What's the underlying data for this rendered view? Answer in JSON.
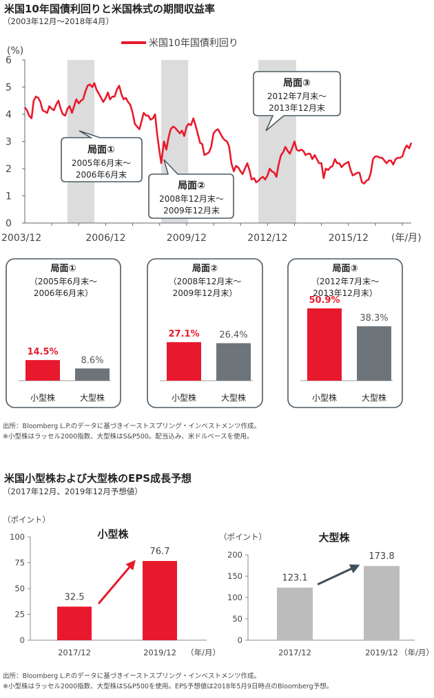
{
  "section1": {
    "title": "米国10年国債利回りと米国株式の期間収益率",
    "subtitle": "（2003年12月～2018年4月）",
    "unit": "(%)",
    "x_unit": "(年/月)",
    "legend": "米国10年国債利回り",
    "phases": [
      {
        "label": "局面①",
        "period": [
          "2005年6月末～",
          "2006年6月末"
        ],
        "start": 2005.5,
        "end": 2006.5
      },
      {
        "label": "局面②",
        "period": [
          "2008年12月末～",
          "2009年12月末"
        ],
        "start": 2008.98,
        "end": 2009.98
      },
      {
        "label": "局面③",
        "period": [
          "2012年7月末～",
          "2013年12月末"
        ],
        "start": 2012.58,
        "end": 2013.98
      }
    ]
  },
  "chart_data": [
    {
      "type": "line",
      "series": [
        {
          "name": "米国10年国債利回り",
          "color": "#e8192c",
          "points": [
            [
              2003.92,
              4.25
            ],
            [
              2004.0,
              4.15
            ],
            [
              2004.08,
              3.95
            ],
            [
              2004.17,
              3.85
            ],
            [
              2004.25,
              4.5
            ],
            [
              2004.33,
              4.65
            ],
            [
              2004.42,
              4.6
            ],
            [
              2004.5,
              4.45
            ],
            [
              2004.58,
              4.15
            ],
            [
              2004.67,
              4.1
            ],
            [
              2004.75,
              4.05
            ],
            [
              2004.83,
              4.3
            ],
            [
              2004.92,
              4.2
            ],
            [
              2005.0,
              4.15
            ],
            [
              2005.08,
              4.35
            ],
            [
              2005.17,
              4.5
            ],
            [
              2005.25,
              4.2
            ],
            [
              2005.33,
              4.0
            ],
            [
              2005.42,
              3.95
            ],
            [
              2005.5,
              4.2
            ],
            [
              2005.58,
              4.3
            ],
            [
              2005.67,
              4.05
            ],
            [
              2005.75,
              4.3
            ],
            [
              2005.83,
              4.55
            ],
            [
              2005.92,
              4.4
            ],
            [
              2006.0,
              4.5
            ],
            [
              2006.08,
              4.55
            ],
            [
              2006.17,
              4.85
            ],
            [
              2006.25,
              5.05
            ],
            [
              2006.33,
              5.1
            ],
            [
              2006.42,
              5.0
            ],
            [
              2006.5,
              5.15
            ],
            [
              2006.58,
              4.9
            ],
            [
              2006.67,
              4.75
            ],
            [
              2006.75,
              4.6
            ],
            [
              2006.83,
              4.45
            ],
            [
              2006.92,
              4.6
            ],
            [
              2007.0,
              4.8
            ],
            [
              2007.08,
              4.55
            ],
            [
              2007.17,
              4.65
            ],
            [
              2007.25,
              4.65
            ],
            [
              2007.33,
              4.9
            ],
            [
              2007.42,
              5.05
            ],
            [
              2007.5,
              4.75
            ],
            [
              2007.58,
              4.55
            ],
            [
              2007.67,
              4.6
            ],
            [
              2007.75,
              4.45
            ],
            [
              2007.83,
              4.35
            ],
            [
              2007.92,
              4.05
            ],
            [
              2008.0,
              3.65
            ],
            [
              2008.08,
              3.55
            ],
            [
              2008.17,
              3.45
            ],
            [
              2008.25,
              3.75
            ],
            [
              2008.33,
              4.05
            ],
            [
              2008.42,
              3.95
            ],
            [
              2008.5,
              3.95
            ],
            [
              2008.58,
              3.8
            ],
            [
              2008.67,
              3.85
            ],
            [
              2008.75,
              4.0
            ],
            [
              2008.83,
              3.25
            ],
            [
              2008.92,
              2.6
            ],
            [
              2008.98,
              2.2
            ],
            [
              2009.08,
              3.0
            ],
            [
              2009.17,
              2.7
            ],
            [
              2009.25,
              3.15
            ],
            [
              2009.33,
              3.45
            ],
            [
              2009.42,
              3.55
            ],
            [
              2009.5,
              3.5
            ],
            [
              2009.58,
              3.4
            ],
            [
              2009.67,
              3.3
            ],
            [
              2009.75,
              3.4
            ],
            [
              2009.83,
              3.2
            ],
            [
              2009.92,
              3.55
            ],
            [
              2010.0,
              3.65
            ],
            [
              2010.08,
              3.6
            ],
            [
              2010.17,
              3.85
            ],
            [
              2010.25,
              3.6
            ],
            [
              2010.33,
              3.3
            ],
            [
              2010.42,
              2.95
            ],
            [
              2010.5,
              2.9
            ],
            [
              2010.58,
              2.5
            ],
            [
              2010.67,
              2.55
            ],
            [
              2010.75,
              2.6
            ],
            [
              2010.83,
              2.8
            ],
            [
              2010.92,
              3.3
            ],
            [
              2011.0,
              3.4
            ],
            [
              2011.08,
              3.45
            ],
            [
              2011.17,
              3.3
            ],
            [
              2011.25,
              3.15
            ],
            [
              2011.33,
              3.05
            ],
            [
              2011.42,
              3.0
            ],
            [
              2011.5,
              2.8
            ],
            [
              2011.58,
              2.2
            ],
            [
              2011.67,
              1.9
            ],
            [
              2011.75,
              2.1
            ],
            [
              2011.83,
              2.05
            ],
            [
              2011.92,
              1.9
            ],
            [
              2012.0,
              1.8
            ],
            [
              2012.08,
              2.0
            ],
            [
              2012.17,
              2.2
            ],
            [
              2012.25,
              1.95
            ],
            [
              2012.33,
              1.6
            ],
            [
              2012.42,
              1.65
            ],
            [
              2012.5,
              1.5
            ],
            [
              2012.58,
              1.55
            ],
            [
              2012.67,
              1.65
            ],
            [
              2012.75,
              1.7
            ],
            [
              2012.83,
              1.6
            ],
            [
              2012.92,
              1.75
            ],
            [
              2013.0,
              2.0
            ],
            [
              2013.08,
              1.9
            ],
            [
              2013.17,
              1.85
            ],
            [
              2013.25,
              1.7
            ],
            [
              2013.33,
              2.15
            ],
            [
              2013.42,
              2.5
            ],
            [
              2013.5,
              2.6
            ],
            [
              2013.58,
              2.8
            ],
            [
              2013.67,
              2.65
            ],
            [
              2013.75,
              2.55
            ],
            [
              2013.83,
              2.75
            ],
            [
              2013.92,
              3.0
            ],
            [
              2014.0,
              2.7
            ],
            [
              2014.08,
              2.65
            ],
            [
              2014.17,
              2.7
            ],
            [
              2014.25,
              2.65
            ],
            [
              2014.33,
              2.5
            ],
            [
              2014.42,
              2.55
            ],
            [
              2014.5,
              2.55
            ],
            [
              2014.58,
              2.35
            ],
            [
              2014.67,
              2.5
            ],
            [
              2014.75,
              2.35
            ],
            [
              2014.83,
              2.2
            ],
            [
              2014.92,
              2.2
            ],
            [
              2015.0,
              1.65
            ],
            [
              2015.08,
              2.0
            ],
            [
              2015.17,
              1.95
            ],
            [
              2015.25,
              2.05
            ],
            [
              2015.33,
              2.1
            ],
            [
              2015.42,
              2.35
            ],
            [
              2015.5,
              2.2
            ],
            [
              2015.58,
              2.2
            ],
            [
              2015.67,
              2.05
            ],
            [
              2015.75,
              2.15
            ],
            [
              2015.83,
              2.2
            ],
            [
              2015.92,
              2.25
            ],
            [
              2016.0,
              1.95
            ],
            [
              2016.08,
              1.75
            ],
            [
              2016.17,
              1.8
            ],
            [
              2016.25,
              1.85
            ],
            [
              2016.33,
              1.85
            ],
            [
              2016.42,
              1.5
            ],
            [
              2016.5,
              1.45
            ],
            [
              2016.58,
              1.55
            ],
            [
              2016.67,
              1.6
            ],
            [
              2016.75,
              1.85
            ],
            [
              2016.83,
              2.35
            ],
            [
              2016.92,
              2.45
            ],
            [
              2017.0,
              2.45
            ],
            [
              2017.08,
              2.4
            ],
            [
              2017.17,
              2.4
            ],
            [
              2017.25,
              2.3
            ],
            [
              2017.33,
              2.2
            ],
            [
              2017.42,
              2.3
            ],
            [
              2017.5,
              2.3
            ],
            [
              2017.58,
              2.15
            ],
            [
              2017.67,
              2.35
            ],
            [
              2017.75,
              2.4
            ],
            [
              2017.83,
              2.4
            ],
            [
              2017.92,
              2.45
            ],
            [
              2018.0,
              2.7
            ],
            [
              2018.08,
              2.85
            ],
            [
              2018.17,
              2.75
            ],
            [
              2018.25,
              2.95
            ]
          ]
        }
      ],
      "xlim": [
        2003.92,
        2018.25
      ],
      "ylim": [
        0,
        6
      ],
      "y_ticks": [
        "0",
        "1",
        "2",
        "3",
        "4",
        "5",
        "6"
      ],
      "x_ticks": [
        {
          "x": 2003.92,
          "label": "2003/12"
        },
        {
          "x": 2006.92,
          "label": "2006/12"
        },
        {
          "x": 2009.92,
          "label": "2009/12"
        },
        {
          "x": 2012.92,
          "label": "2012/12"
        },
        {
          "x": 2015.92,
          "label": "2015/12"
        }
      ],
      "shaded_periods": [
        [
          2005.5,
          2006.5
        ],
        [
          2008.98,
          2009.98
        ],
        [
          2012.58,
          2013.98
        ]
      ]
    },
    {
      "type": "bar",
      "title": "局面①",
      "period": [
        "（2005年6月末～",
        "2006年6月末）"
      ],
      "categories": [
        "小型株",
        "大型株"
      ],
      "values": [
        14.5,
        8.6
      ],
      "value_labels": [
        "14.5%",
        "8.6%"
      ],
      "colors": [
        "#e8192c",
        "#6d757b"
      ],
      "label_colors": [
        "#e8192c",
        "#555555"
      ]
    },
    {
      "type": "bar",
      "title": "局面②",
      "period": [
        "（2008年12月末～",
        "2009年12月末）"
      ],
      "categories": [
        "小型株",
        "大型株"
      ],
      "values": [
        27.1,
        26.4
      ],
      "value_labels": [
        "27.1%",
        "26.4%"
      ],
      "colors": [
        "#e8192c",
        "#6d757b"
      ],
      "label_colors": [
        "#e8192c",
        "#555555"
      ]
    },
    {
      "type": "bar",
      "title": "局面③",
      "period": [
        "（2012年7月末～",
        "2013年12月末）"
      ],
      "categories": [
        "小型株",
        "大型株"
      ],
      "values": [
        50.9,
        38.3
      ],
      "value_labels": [
        "50.9%",
        "38.3%"
      ],
      "colors": [
        "#e8192c",
        "#6d757b"
      ],
      "label_colors": [
        "#e8192c",
        "#555555"
      ]
    },
    {
      "type": "bar",
      "title": "小型株",
      "unit": "（ポイント）",
      "x_unit": "（年/月）",
      "categories": [
        "2017/12",
        "2019/12"
      ],
      "values": [
        32.5,
        76.7
      ],
      "value_labels": [
        "32.5",
        "76.7"
      ],
      "ylim": [
        0,
        100
      ],
      "y_ticks": [
        "0",
        "25",
        "50",
        "75",
        "100"
      ],
      "color": "#e8192c",
      "arrow_color": "#e8192c"
    },
    {
      "type": "bar",
      "title": "大型株",
      "unit": "（ポイント）",
      "x_unit": "（年/月）",
      "categories": [
        "2017/12",
        "2019/12"
      ],
      "values": [
        123.1,
        173.8
      ],
      "value_labels": [
        "123.1",
        "173.8"
      ],
      "ylim": [
        0,
        200
      ],
      "y_ticks": [
        "0",
        "50",
        "100",
        "150",
        "200"
      ],
      "color": "#bcbcbc",
      "arrow_color": "#3f4e57"
    }
  ],
  "notes1": [
    "出所：Bloomberg L.P.のデータに基づきイーストスプリング・インベストメンツ作成。",
    "※小型株はラッセル2000指数、大型株はS&P500。配当込み、米ドルベースを使用。"
  ],
  "section2": {
    "title": "米国小型株および大型株のEPS成長予想",
    "subtitle": "（2017年12月、2019年12月予想値）"
  },
  "notes2": [
    "出所：Bloomberg L.P.のデータに基づきイーストスプリング・インベストメンツ作成。",
    "※小型株はラッセル2000指数、大型株はS&P500を使用。EPS予想値は2018年5月9日時点のBloomberg予想。"
  ]
}
